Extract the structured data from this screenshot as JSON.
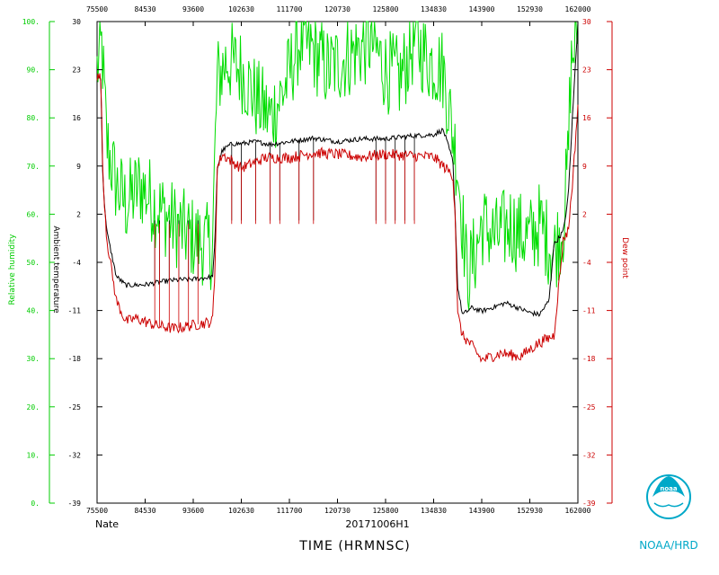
{
  "chart_data": {
    "type": "line",
    "storm_name": "Nate",
    "flight_id": "20171006H1",
    "xlabel": "TIME (HRMNSC)",
    "agency": "NOAA/HRD",
    "logo_text": "noaa",
    "x_ticks": [
      "75500",
      "84530",
      "93600",
      "102630",
      "111700",
      "120730",
      "125800",
      "134830",
      "143900",
      "152930",
      "162000"
    ],
    "rh_axis": {
      "label": "Relative humidity",
      "color": "#00cc00",
      "ticks": [
        "0.",
        "10.",
        "20.",
        "30.",
        "40.",
        "50.",
        "60.",
        "70.",
        "80.",
        "90.",
        "100."
      ],
      "ylim": [
        0,
        100
      ]
    },
    "temp_axis": {
      "label": "Ambient temperature",
      "color": "#000000",
      "ticks": [
        "-39",
        "-32",
        "-25",
        "-18",
        "-11",
        "-4",
        "2",
        "9",
        "16",
        "23",
        "30"
      ],
      "ylim": [
        -39,
        30
      ]
    },
    "dew_axis": {
      "label": "Dew point",
      "color": "#cc0000",
      "ticks": [
        "-39",
        "-32",
        "-25",
        "-18",
        "-11",
        "-4",
        "2",
        "9",
        "16",
        "23",
        "30"
      ],
      "ylim": [
        -39,
        30
      ]
    },
    "series": [
      {
        "name": "Relative humidity",
        "axis": "rh",
        "color": "#00dd00",
        "x": [
          0.0,
          0.01,
          0.02,
          0.04,
          0.06,
          0.09,
          0.12,
          0.16,
          0.2,
          0.24,
          0.245,
          0.25,
          0.27,
          0.3,
          0.33,
          0.36,
          0.39,
          0.42,
          0.45,
          0.48,
          0.51,
          0.54,
          0.57,
          0.6,
          0.63,
          0.66,
          0.69,
          0.72,
          0.75,
          0.77,
          0.79,
          0.8,
          0.83,
          0.86,
          0.88,
          0.9,
          0.92,
          0.95,
          0.97,
          0.98,
          0.985,
          1.0
        ],
        "values": [
          90,
          95,
          75,
          66,
          62,
          66,
          62,
          58,
          55,
          53,
          72,
          88,
          92,
          90,
          84,
          80,
          86,
          96,
          94,
          90,
          92,
          94,
          96,
          90,
          88,
          96,
          92,
          90,
          70,
          47,
          53,
          58,
          55,
          58,
          56,
          55,
          58,
          52,
          58,
          72,
          90,
          100
        ],
        "noise": 9
      },
      {
        "name": "Ambient temperature",
        "axis": "temp",
        "color": "#000000",
        "x": [
          0.0,
          0.008,
          0.012,
          0.02,
          0.04,
          0.06,
          0.1,
          0.15,
          0.2,
          0.24,
          0.245,
          0.25,
          0.26,
          0.28,
          0.3,
          0.33,
          0.36,
          0.4,
          0.45,
          0.5,
          0.55,
          0.6,
          0.65,
          0.7,
          0.72,
          0.74,
          0.745,
          0.75,
          0.76,
          0.78,
          0.8,
          0.85,
          0.9,
          0.92,
          0.94,
          0.95,
          0.97,
          0.98,
          0.99,
          1.0
        ],
        "values": [
          22,
          22,
          7,
          0,
          -6.5,
          -7.8,
          -7.7,
          -7.1,
          -6.9,
          -6.6,
          -2,
          9,
          11.5,
          12.5,
          12.5,
          12.8,
          12.4,
          12.8,
          13.3,
          12.8,
          13.2,
          13.2,
          13.6,
          13.8,
          14.5,
          10,
          2,
          -8,
          -12,
          -11,
          -11.5,
          -10.3,
          -11.7,
          -12,
          -10,
          -2,
          0,
          5,
          18,
          30
        ],
        "noise": 0.35
      },
      {
        "name": "Dew point",
        "axis": "dew",
        "color": "#cc0000",
        "x": [
          0.0,
          0.008,
          0.012,
          0.02,
          0.04,
          0.06,
          0.08,
          0.12,
          0.16,
          0.2,
          0.24,
          0.245,
          0.25,
          0.26,
          0.3,
          0.35,
          0.4,
          0.45,
          0.5,
          0.55,
          0.6,
          0.65,
          0.7,
          0.74,
          0.745,
          0.75,
          0.76,
          0.78,
          0.8,
          0.84,
          0.88,
          0.9,
          0.92,
          0.95,
          0.97,
          0.98,
          0.99,
          1.0
        ],
        "values": [
          22,
          22,
          8,
          -1,
          -10,
          -13,
          -12.5,
          -13.5,
          -14,
          -13.5,
          -13,
          -6,
          9,
          11,
          9,
          10.5,
          10.5,
          11.2,
          11,
          10.6,
          11,
          10.8,
          10.6,
          8,
          2,
          -12,
          -15,
          -16.5,
          -18.5,
          -17.5,
          -18,
          -17,
          -16,
          -15,
          -1,
          0,
          8,
          18
        ],
        "noise": 0.8
      }
    ]
  }
}
